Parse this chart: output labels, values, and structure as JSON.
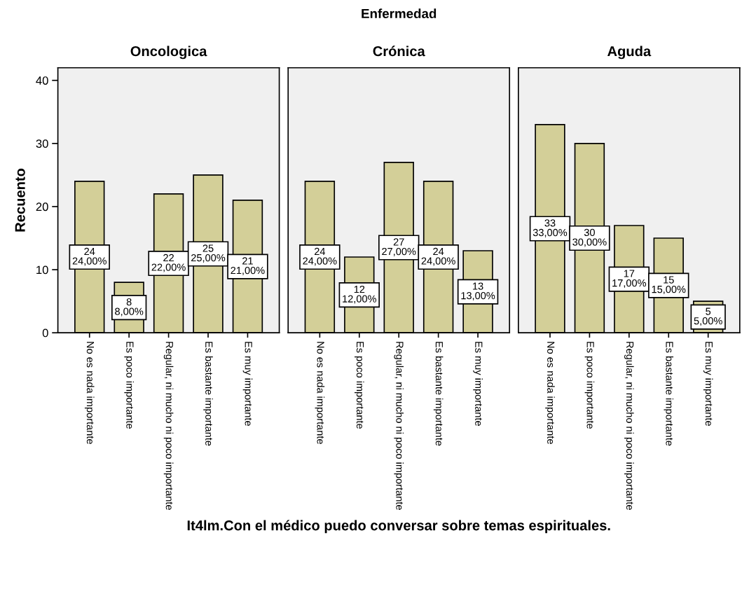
{
  "chart_data": [
    {
      "type": "bar",
      "title": "Oncologica",
      "ylabel": "Recuento",
      "categories": [
        "No es nada importante",
        "Es poco importante",
        "Regular, ni mucho ni poco importante",
        "Es bastante importante",
        "Es muy importante"
      ],
      "values": [
        24,
        8,
        22,
        25,
        21
      ],
      "value_labels": [
        "24\n24,00%",
        "8\n8,00%",
        "22\n22,00%",
        "25\n25,00%",
        "21\n21,00%"
      ],
      "color": "#d3cf98",
      "ylim": [
        0,
        42
      ],
      "yticks": [
        0,
        10,
        20,
        30,
        40
      ]
    },
    {
      "type": "bar",
      "title": "Crónica",
      "xlabel": "It4lm.Con el médico puedo conversar sobre temas espirituales.",
      "annotations": [
        "Enfermedad"
      ],
      "categories": [
        "No es nada importante",
        "Es poco importante",
        "Regular, ni mucho ni poco importante",
        "Es bastante importante",
        "Es muy importante"
      ],
      "values": [
        24,
        12,
        27,
        24,
        13
      ],
      "value_labels": [
        "24\n24,00%",
        "12\n12,00%",
        "27\n27,00%",
        "24\n24,00%",
        "13\n13,00%"
      ],
      "color": "#d3cf98",
      "ylim": [
        0,
        42
      ],
      "yticks": [
        0,
        10,
        20,
        30,
        40
      ],
      "tick_labels": "x"
    },
    {
      "type": "bar",
      "title": "Aguda",
      "categories": [
        "No es nada importante",
        "Es poco importante",
        "Regular, ni mucho ni poco importante",
        "Es bastante importante",
        "Es muy importante"
      ],
      "values": [
        33,
        30,
        17,
        15,
        5
      ],
      "value_labels": [
        "33\n33,00%",
        "30\n30,00%",
        "17\n17,00%",
        "15\n15,00%",
        "5\n5,00%"
      ],
      "color": "#d3cf98",
      "ylim": [
        0,
        42
      ],
      "yticks": [
        0,
        10,
        20,
        30,
        40
      ],
      "tick_labels": "x"
    }
  ]
}
